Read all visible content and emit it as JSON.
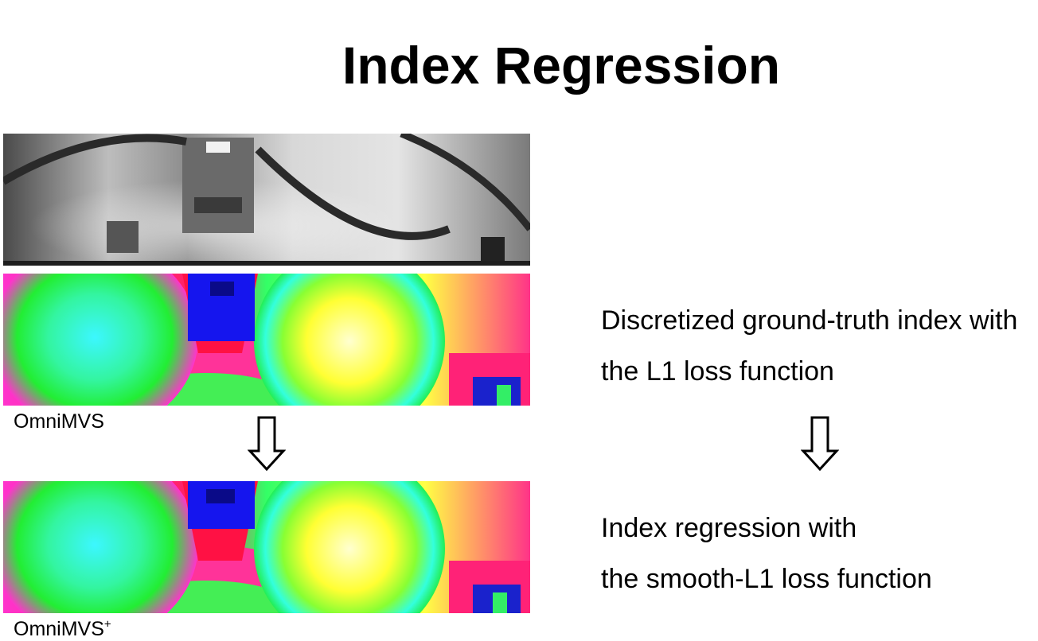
{
  "slide": {
    "title": "Index Regression",
    "captions": {
      "first": "OmniMVS",
      "second_base": "OmniMVS",
      "second_sup": "+"
    },
    "right_text": {
      "line1": "Discretized ground-truth index with",
      "line2": "the L1 loss function",
      "line3": "Index regression with",
      "line4": "the smooth-L1 loss function"
    },
    "colors": {
      "text": "#000000",
      "background": "#ffffff"
    },
    "icons": [
      "down-arrow-icon",
      "down-arrow-icon"
    ]
  }
}
